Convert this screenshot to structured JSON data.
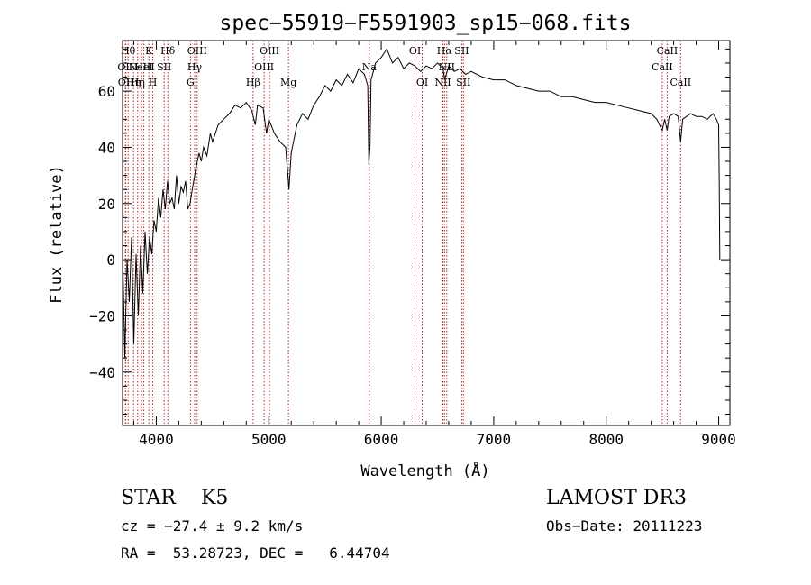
{
  "chart_data": {
    "type": "line",
    "title": "spec−55919−F5591903_sp15−068.fits",
    "xlabel": "Wavelength (Å)",
    "ylabel": "Flux (relative)",
    "xlim": [
      3700,
      9100
    ],
    "ylim": [
      -59,
      78
    ],
    "x_ticks": [
      4000,
      5000,
      6000,
      7000,
      8000,
      9000
    ],
    "x_tick_labels": [
      "4000",
      "5000",
      "6000",
      "7000",
      "8000",
      "9000"
    ],
    "y_ticks": [
      -40,
      -20,
      0,
      20,
      40,
      60
    ],
    "y_tick_labels": [
      "−40",
      "−20",
      "0",
      "20",
      "40",
      "60"
    ],
    "grid": false,
    "line_color": "#000000",
    "marker_color": "#b22222",
    "series": [
      {
        "name": "spectrum",
        "points": [
          [
            3700,
            5
          ],
          [
            3720,
            -35
          ],
          [
            3740,
            0
          ],
          [
            3760,
            -15
          ],
          [
            3780,
            8
          ],
          [
            3800,
            -30
          ],
          [
            3820,
            2
          ],
          [
            3840,
            -20
          ],
          [
            3860,
            5
          ],
          [
            3880,
            -12
          ],
          [
            3900,
            10
          ],
          [
            3920,
            -5
          ],
          [
            3940,
            8
          ],
          [
            3960,
            2
          ],
          [
            3980,
            14
          ],
          [
            4000,
            10
          ],
          [
            4020,
            22
          ],
          [
            4040,
            15
          ],
          [
            4060,
            25
          ],
          [
            4080,
            18
          ],
          [
            4100,
            28
          ],
          [
            4120,
            20
          ],
          [
            4140,
            22
          ],
          [
            4160,
            18
          ],
          [
            4180,
            30
          ],
          [
            4200,
            20
          ],
          [
            4220,
            26
          ],
          [
            4240,
            24
          ],
          [
            4260,
            28
          ],
          [
            4280,
            18
          ],
          [
            4300,
            20
          ],
          [
            4320,
            25
          ],
          [
            4350,
            32
          ],
          [
            4380,
            38
          ],
          [
            4400,
            35
          ],
          [
            4420,
            40
          ],
          [
            4450,
            37
          ],
          [
            4480,
            45
          ],
          [
            4500,
            42
          ],
          [
            4550,
            48
          ],
          [
            4600,
            50
          ],
          [
            4650,
            52
          ],
          [
            4700,
            55
          ],
          [
            4750,
            54
          ],
          [
            4800,
            56
          ],
          [
            4850,
            53
          ],
          [
            4880,
            48
          ],
          [
            4900,
            55
          ],
          [
            4950,
            54
          ],
          [
            4980,
            45
          ],
          [
            5000,
            50
          ],
          [
            5050,
            45
          ],
          [
            5100,
            42
          ],
          [
            5150,
            40
          ],
          [
            5170,
            30
          ],
          [
            5180,
            25
          ],
          [
            5200,
            38
          ],
          [
            5250,
            48
          ],
          [
            5300,
            52
          ],
          [
            5350,
            50
          ],
          [
            5400,
            55
          ],
          [
            5450,
            58
          ],
          [
            5500,
            62
          ],
          [
            5550,
            60
          ],
          [
            5600,
            64
          ],
          [
            5650,
            62
          ],
          [
            5700,
            66
          ],
          [
            5750,
            63
          ],
          [
            5800,
            68
          ],
          [
            5850,
            66
          ],
          [
            5880,
            62
          ],
          [
            5890,
            34
          ],
          [
            5900,
            40
          ],
          [
            5910,
            64
          ],
          [
            5950,
            70
          ],
          [
            6000,
            72
          ],
          [
            6050,
            75
          ],
          [
            6100,
            70
          ],
          [
            6150,
            72
          ],
          [
            6200,
            68
          ],
          [
            6250,
            70
          ],
          [
            6300,
            69
          ],
          [
            6350,
            67
          ],
          [
            6400,
            69
          ],
          [
            6450,
            68
          ],
          [
            6500,
            70
          ],
          [
            6550,
            68
          ],
          [
            6563,
            64
          ],
          [
            6600,
            69
          ],
          [
            6650,
            67
          ],
          [
            6700,
            68
          ],
          [
            6750,
            66
          ],
          [
            6800,
            67
          ],
          [
            6900,
            65
          ],
          [
            7000,
            64
          ],
          [
            7100,
            64
          ],
          [
            7200,
            62
          ],
          [
            7300,
            61
          ],
          [
            7400,
            60
          ],
          [
            7500,
            60
          ],
          [
            7600,
            58
          ],
          [
            7700,
            58
          ],
          [
            7800,
            57
          ],
          [
            7900,
            56
          ],
          [
            8000,
            56
          ],
          [
            8100,
            55
          ],
          [
            8200,
            54
          ],
          [
            8300,
            53
          ],
          [
            8400,
            52
          ],
          [
            8450,
            50
          ],
          [
            8498,
            46
          ],
          [
            8520,
            50
          ],
          [
            8542,
            46
          ],
          [
            8560,
            51
          ],
          [
            8600,
            52
          ],
          [
            8640,
            51
          ],
          [
            8662,
            42
          ],
          [
            8680,
            50
          ],
          [
            8750,
            52
          ],
          [
            8800,
            51
          ],
          [
            8850,
            51
          ],
          [
            8900,
            50
          ],
          [
            8950,
            52
          ],
          [
            8980,
            50
          ],
          [
            9000,
            48
          ],
          [
            9005,
            30
          ],
          [
            9010,
            0
          ]
        ]
      }
    ],
    "line_markers": [
      {
        "wavelength": 3750,
        "label": "Hθ",
        "row": 0
      },
      {
        "wavelength": 3726,
        "label": "OII",
        "row": 1
      },
      {
        "wavelength": 3729,
        "label": "OII",
        "row": 2
      },
      {
        "wavelength": 3798,
        "label": "Hη",
        "row": 2
      },
      {
        "wavelength": 3835,
        "label": "Hη",
        "row": 2
      },
      {
        "wavelength": 3869,
        "label": "NeIII",
        "row": 1
      },
      {
        "wavelength": 3889,
        "label": "HeI",
        "row": 1
      },
      {
        "wavelength": 3934,
        "label": "K",
        "row": 0
      },
      {
        "wavelength": 3969,
        "label": "H",
        "row": 2
      },
      {
        "wavelength": 4070,
        "label": "SII",
        "row": 1
      },
      {
        "wavelength": 4102,
        "label": "Hδ",
        "row": 0
      },
      {
        "wavelength": 4304,
        "label": "G",
        "row": 2
      },
      {
        "wavelength": 4341,
        "label": "Hγ",
        "row": 1
      },
      {
        "wavelength": 4363,
        "label": "OIII",
        "row": 0
      },
      {
        "wavelength": 4861,
        "label": "Hβ",
        "row": 2
      },
      {
        "wavelength": 4959,
        "label": "OIII",
        "row": 1
      },
      {
        "wavelength": 5007,
        "label": "OIII",
        "row": 0
      },
      {
        "wavelength": 5175,
        "label": "Mg",
        "row": 2
      },
      {
        "wavelength": 5894,
        "label": "Na",
        "row": 1
      },
      {
        "wavelength": 6300,
        "label": "OI",
        "row": 0
      },
      {
        "wavelength": 6364,
        "label": "OI",
        "row": 2
      },
      {
        "wavelength": 6548,
        "label": "NII",
        "row": 2
      },
      {
        "wavelength": 6563,
        "label": "Hα",
        "row": 0
      },
      {
        "wavelength": 6583,
        "label": "NII",
        "row": 1
      },
      {
        "wavelength": 6716,
        "label": "SII",
        "row": 0
      },
      {
        "wavelength": 6731,
        "label": "SII",
        "row": 2
      },
      {
        "wavelength": 8498,
        "label": "CaII",
        "row": 1
      },
      {
        "wavelength": 8542,
        "label": "CaII",
        "row": 0
      },
      {
        "wavelength": 8662,
        "label": "CaII",
        "row": 2
      }
    ]
  },
  "info": {
    "class_text": "STAR    K5",
    "survey": "LAMOST DR3",
    "cz_text": "cz = −27.4 ± 9.2 km/s",
    "obs_date": "Obs−Date: 20111223",
    "coords_text": "RA =  53.28723, DEC =   6.44704"
  }
}
